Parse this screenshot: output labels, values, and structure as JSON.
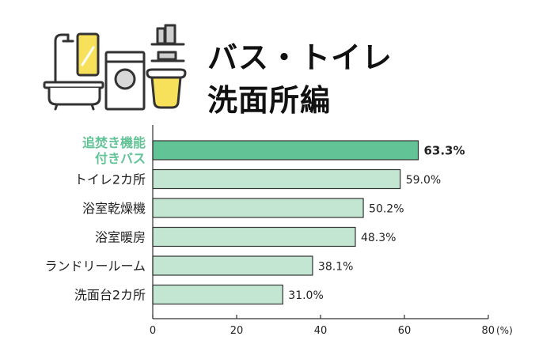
{
  "header": {
    "title_line1": "バス・トイレ",
    "title_line2": "洗面所編",
    "illustration_icons": [
      "shower-icon",
      "mirror-icon",
      "bathtub-icon",
      "washing-machine-icon",
      "detergent-shelf-icon",
      "wash-basin-icon"
    ]
  },
  "chart_data": {
    "type": "bar",
    "orientation": "horizontal",
    "title": "バス・トイレ 洗面所編",
    "categories": [
      "追焚き機能\n付きバス",
      "トイレ2カ所",
      "浴室乾燥機",
      "浴室暖房",
      "ランドリールーム",
      "洗面台2カ所"
    ],
    "values": [
      63.3,
      59.0,
      50.2,
      48.3,
      38.1,
      31.0
    ],
    "value_labels": [
      "63.3%",
      "59.0%",
      "50.2%",
      "48.3%",
      "38.1%",
      "31.0%"
    ],
    "highlight_index": 0,
    "xlim": [
      0,
      80
    ],
    "xticks": [
      "0",
      "20",
      "40",
      "60",
      "80"
    ],
    "x_unit": "(%)",
    "grid": false,
    "colors": {
      "highlight_fill": "#62c397",
      "bar_fill": "#c3e6d3",
      "bar_stroke": "#333333",
      "highlight_label": "#62c397",
      "axis": "#333333"
    }
  }
}
